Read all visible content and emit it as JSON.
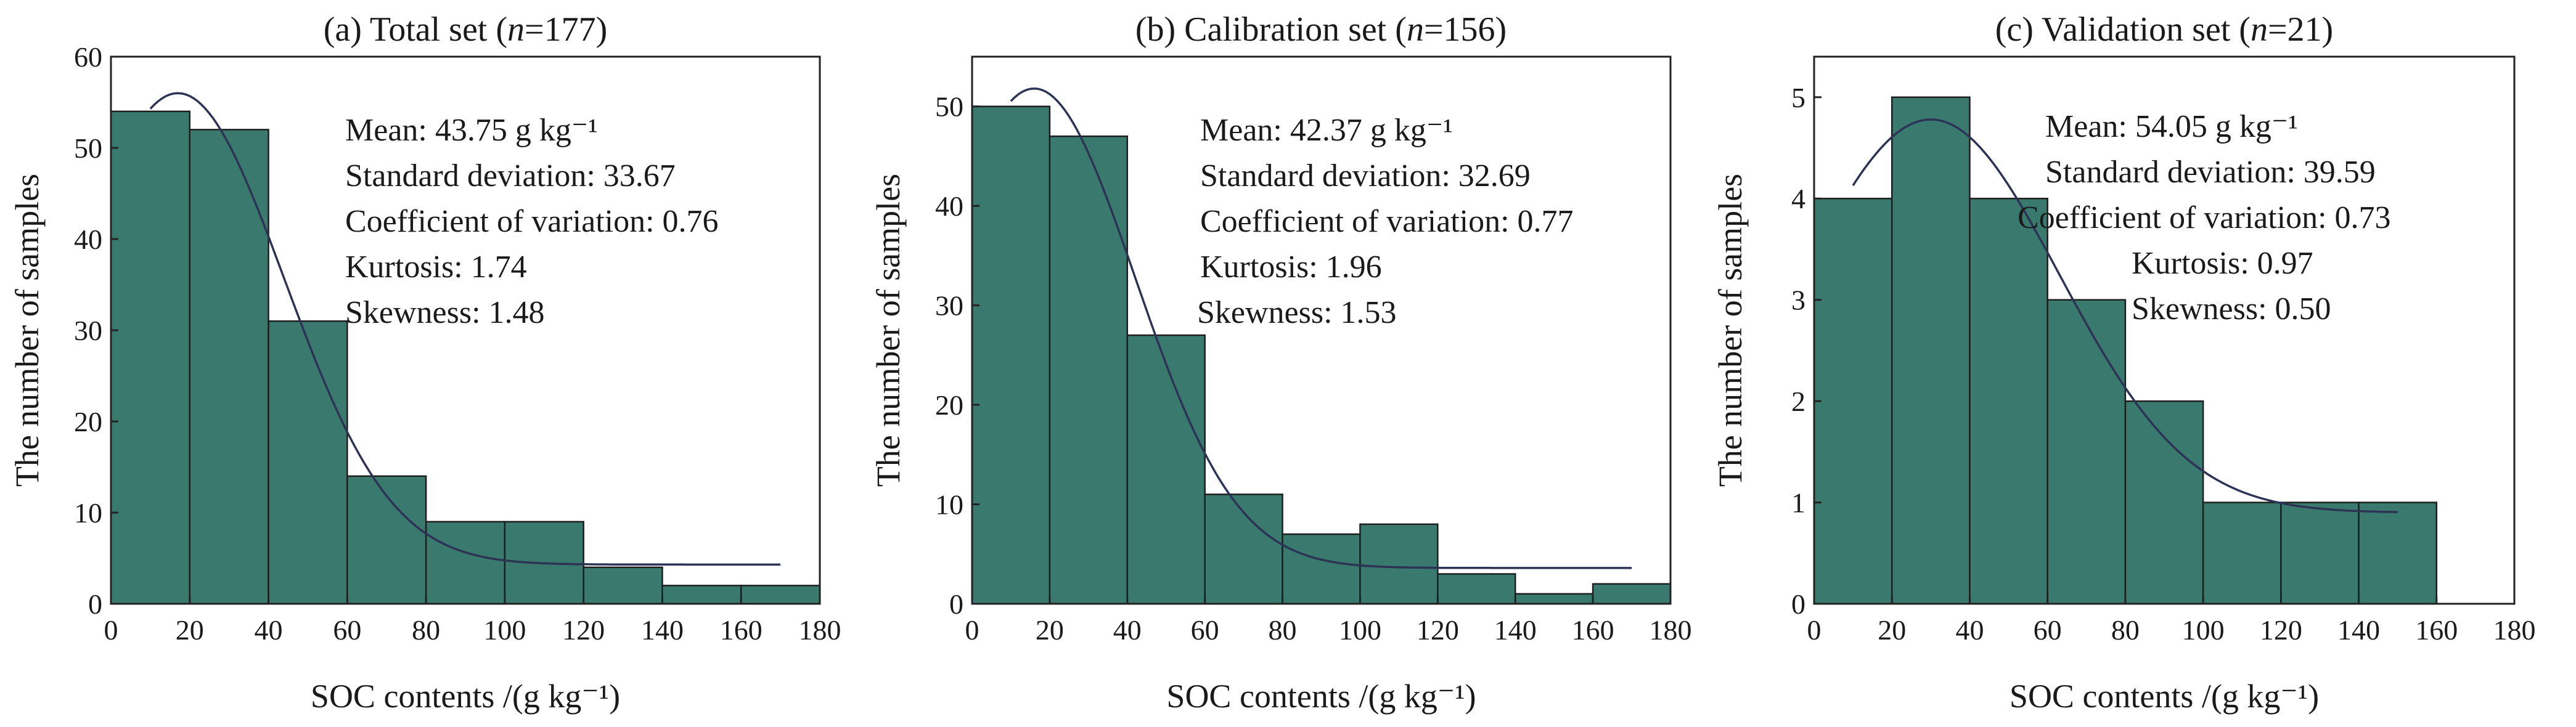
{
  "chart_data": [
    {
      "type": "bar",
      "title_prefix": "(a) Total set (",
      "title_italic": "n",
      "title_suffix": "=177)",
      "xlabel": "SOC contents /(g kg⁻¹)",
      "ylabel": "The number of samples",
      "bin_width": 20,
      "bin_starts": [
        0,
        20,
        40,
        60,
        80,
        100,
        120,
        140,
        160
      ],
      "values": [
        54,
        52,
        31,
        14,
        9,
        9,
        4,
        2,
        2
      ],
      "xlim": [
        0,
        180
      ],
      "ylim": [
        0,
        60
      ],
      "xticks": [
        0,
        20,
        40,
        60,
        80,
        100,
        120,
        140,
        160,
        180
      ],
      "yticks": [
        0,
        10,
        20,
        30,
        40,
        50,
        60
      ],
      "curve": {
        "mean": 17,
        "sd": 27,
        "peak": 56,
        "baseline": 4.3,
        "x_range": [
          10,
          170
        ]
      },
      "stats": [
        "Mean: 43.75 g kg⁻¹",
        "Standard deviation: 33.67",
        "Coefficient of variation: 0.76",
        "Kurtosis: 1.74",
        "Skewness: 1.48"
      ]
    },
    {
      "type": "bar",
      "title_prefix": "(b) Calibration set (",
      "title_italic": "n",
      "title_suffix": "=156)",
      "xlabel": "SOC contents /(g kg⁻¹)",
      "ylabel": "The number of samples",
      "bin_width": 20,
      "bin_starts": [
        0,
        20,
        40,
        60,
        80,
        100,
        120,
        140,
        160
      ],
      "values": [
        50,
        47,
        27,
        11,
        7,
        8,
        3,
        1,
        2
      ],
      "xlim": [
        0,
        180
      ],
      "ylim": [
        0,
        55
      ],
      "xticks": [
        0,
        20,
        40,
        60,
        80,
        100,
        120,
        140,
        160,
        180
      ],
      "yticks": [
        0,
        10,
        20,
        30,
        40,
        50
      ],
      "curve": {
        "mean": 16,
        "sd": 26,
        "peak": 51.8,
        "baseline": 3.6,
        "x_range": [
          10,
          170
        ]
      },
      "stats": [
        "Mean: 42.37 g kg⁻¹",
        "Standard deviation: 32.69",
        "Coefficient of variation: 0.77",
        "Kurtosis: 1.96",
        "Skewness: 1.53"
      ]
    },
    {
      "type": "bar",
      "title_prefix": "(c) Validation set (",
      "title_italic": "n",
      "title_suffix": "=21)",
      "xlabel": "SOC contents /(g kg⁻¹)",
      "ylabel": "The number of samples",
      "bin_width": 20,
      "bin_starts": [
        0,
        20,
        40,
        60,
        80,
        100,
        120,
        140
      ],
      "values": [
        4,
        5,
        4,
        3,
        2,
        1,
        1,
        1
      ],
      "xlim": [
        0,
        180
      ],
      "ylim": [
        0,
        5.4
      ],
      "xticks": [
        0,
        20,
        40,
        60,
        80,
        100,
        120,
        140,
        160,
        180
      ],
      "yticks": [
        0,
        1,
        2,
        3,
        4,
        5
      ],
      "curve": {
        "mean": 30,
        "sd": 33,
        "peak": 4.78,
        "baseline": 0.9,
        "x_range": [
          10,
          150
        ]
      },
      "stats": [
        "Mean: 54.05 g kg⁻¹",
        "Standard deviation: 39.59",
        "Coefficient of variation: 0.73",
        "Kurtosis: 0.97",
        "Skewness: 0.50"
      ]
    }
  ],
  "colors": {
    "bar_fill": "#3a7a6e",
    "bar_edge": "#1e1e1e",
    "curve": "#2d3354",
    "axis": "#222222"
  }
}
